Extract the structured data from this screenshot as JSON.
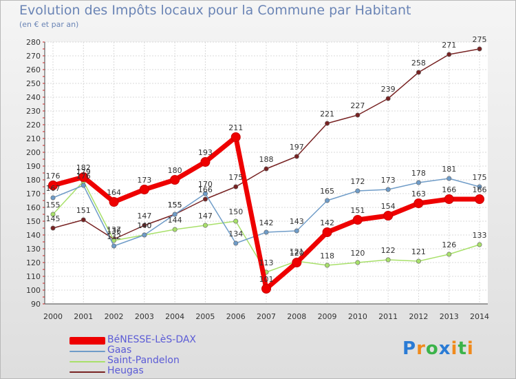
{
  "title": "Evolution des Impôts locaux pour la Commune par Habitant",
  "subtitle": "(en € et par an)",
  "logo": "Proxiti",
  "chart_data": {
    "type": "line",
    "x": [
      2000,
      2001,
      2002,
      2003,
      2004,
      2005,
      2006,
      2007,
      2008,
      2009,
      2010,
      2011,
      2012,
      2013,
      2014
    ],
    "ylim": [
      90,
      280
    ],
    "yticks": [
      90,
      100,
      110,
      120,
      130,
      140,
      150,
      160,
      170,
      180,
      190,
      200,
      210,
      220,
      230,
      240,
      250,
      260,
      270,
      280
    ],
    "grid": true,
    "legend_position": "bottom-left",
    "series": [
      {
        "name": "BéNESSE-LèS-DAX",
        "color": "#ee0000",
        "width": 7,
        "values": [
          176,
          182,
          164,
          173,
          180,
          193,
          211,
          101,
          120,
          142,
          151,
          154,
          163,
          166,
          166
        ]
      },
      {
        "name": "Gaas",
        "color": "#6f9cc8",
        "width": 1.5,
        "values": [
          167,
          176,
          132,
          140,
          155,
          170,
          134,
          142,
          143,
          165,
          172,
          173,
          178,
          181,
          175
        ]
      },
      {
        "name": "Saint-Pandelon",
        "color": "#a8e06a",
        "width": 1.5,
        "values": [
          155,
          179,
          136,
          140,
          144,
          147,
          150,
          113,
          121,
          118,
          120,
          122,
          121,
          126,
          133
        ]
      },
      {
        "name": "Heugas",
        "color": "#772222",
        "width": 1.5,
        "values": [
          145,
          151,
          137,
          147,
          155,
          166,
          175,
          188,
          197,
          221,
          227,
          239,
          258,
          271,
          275
        ]
      }
    ],
    "data_labels": [
      {
        "series": 0,
        "text": [
          "176",
          "182",
          "164",
          "173",
          "180",
          "193",
          "211",
          "101",
          "120",
          "142",
          "151",
          "154",
          "163",
          "166",
          "166"
        ]
      },
      {
        "series": 1,
        "text": [
          "167",
          "176",
          "132",
          "140",
          "155",
          "170",
          "134",
          "142",
          "143",
          "165",
          "172",
          "173",
          "178",
          "181",
          "175"
        ]
      },
      {
        "series": 2,
        "text": [
          "155",
          "179",
          "136",
          "140",
          "144",
          "147",
          "150",
          "113",
          "121",
          "118",
          "120",
          "122",
          "121",
          "126",
          "133"
        ]
      },
      {
        "series": 3,
        "text": [
          "145",
          "151",
          "137",
          "147",
          "155",
          "166",
          "175",
          "188",
          "197",
          "221",
          "227",
          "239",
          "258",
          "271",
          "275"
        ]
      }
    ]
  }
}
